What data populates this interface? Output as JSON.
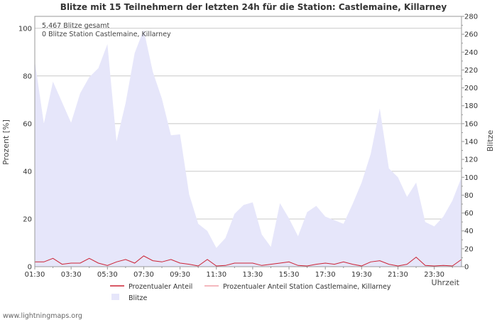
{
  "chart_data": {
    "type": "area",
    "title": "Blitze mit 15 Teilnehmern der letzten 24h für die Station: Castlemaine, Killarney",
    "xlabel": "Uhrzeit",
    "ylabel_left": "Prozent   [%]",
    "ylabel_right": "Blitze",
    "ylim_left": [
      0,
      105
    ],
    "ylim_right": [
      0,
      280
    ],
    "grid": true,
    "x_ticks": [
      "01:30",
      "03:30",
      "05:30",
      "07:30",
      "09:30",
      "11:30",
      "13:30",
      "15:30",
      "17:30",
      "19:30",
      "21:30",
      "23:30"
    ],
    "y_left_ticks": [
      "0",
      "20",
      "40",
      "60",
      "80",
      "100"
    ],
    "y_right_ticks": [
      "0",
      "20",
      "40",
      "60",
      "80",
      "100",
      "120",
      "140",
      "160",
      "180",
      "200",
      "220",
      "240",
      "260",
      "280"
    ],
    "annotations": [
      "5.467 Blitze gesamt",
      "0 Blitze Station Castlemaine, Killarney"
    ],
    "x_hours": [
      0,
      0.5,
      1,
      1.5,
      2,
      2.5,
      3,
      3.5,
      4,
      4.5,
      5,
      5.5,
      6,
      6.5,
      7,
      7.5,
      8,
      8.5,
      9,
      9.5,
      10,
      10.5,
      11,
      11.5,
      12,
      12.5,
      13,
      13.5,
      14,
      14.5,
      15,
      15.5,
      16,
      16.5,
      17,
      17.5,
      18,
      18.5,
      19,
      19.5,
      20,
      20.5,
      21,
      21.5,
      22,
      22.5,
      23,
      23.5
    ],
    "series": [
      {
        "name": "Blitze",
        "axis": "right",
        "color": "#e6e6fa",
        "values": [
          230,
          160,
          207,
          184,
          161,
          194,
          212,
          222,
          249,
          140,
          183,
          239,
          265,
          218,
          188,
          147,
          148,
          81,
          48,
          40,
          21,
          32,
          59,
          69,
          72,
          36,
          22,
          71,
          54,
          34,
          61,
          68,
          56,
          52,
          48,
          70,
          94,
          126,
          177,
          110,
          100,
          78,
          94,
          50,
          45,
          56,
          74,
          100
        ]
      },
      {
        "name": "Prozentualer Anteil",
        "axis": "left",
        "color": "#cc2233",
        "values": [
          2,
          2,
          3.5,
          1,
          1.5,
          1.5,
          3.5,
          1.5,
          0.5,
          2,
          3,
          1.5,
          4.5,
          2.5,
          2,
          3,
          1.5,
          1,
          0.3,
          3,
          0.3,
          0.5,
          1.5,
          1.5,
          1.5,
          0.5,
          1,
          1.5,
          2,
          0.5,
          0.3,
          1,
          1.5,
          1,
          2,
          1,
          0.3,
          2,
          2.5,
          1,
          0.3,
          1,
          4,
          0.5,
          0.3,
          0.5,
          0.3,
          3
        ]
      },
      {
        "name": "Prozentualer Anteil Station Castlemaine, Killarney",
        "axis": "left",
        "color": "#f0a0a8",
        "values": [
          0,
          0,
          0,
          0,
          0,
          0,
          0,
          0,
          0,
          0,
          0,
          0,
          0,
          0,
          0,
          0,
          0,
          0,
          0,
          0,
          0,
          0,
          0,
          0,
          0,
          0,
          0,
          0,
          0,
          0,
          0,
          0,
          0,
          0,
          0,
          0,
          0,
          0,
          0,
          0,
          0,
          0,
          0,
          0,
          0,
          0,
          0,
          0
        ]
      }
    ],
    "legend": [
      "Prozentualer Anteil",
      "Prozentualer Anteil Station Castlemaine, Killarney",
      "Blitze"
    ]
  },
  "footer": {
    "credit": "www.lightningmaps.org"
  }
}
